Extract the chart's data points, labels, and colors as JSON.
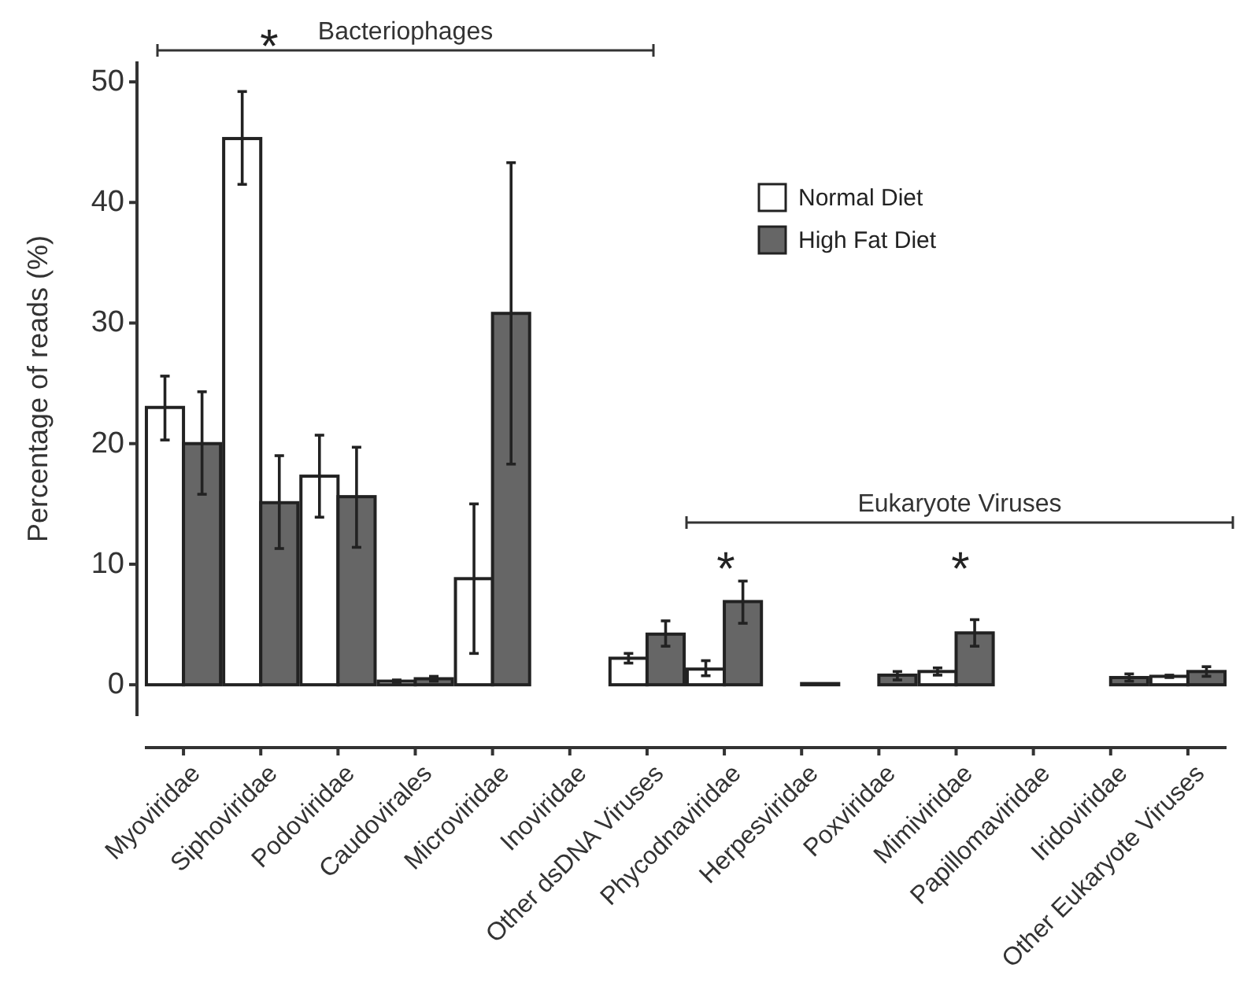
{
  "chart_data": {
    "type": "bar",
    "ylabel": "Percentage of reads (%)",
    "categories": [
      "Myoviridae",
      "Siphoviridae",
      "Podoviridae",
      "Caudovirales",
      "Microviridae",
      "Inoviridae",
      "Other dsDNA Viruses",
      "Phycodnaviridae",
      "Herpesviridae",
      "Poxviridae",
      "Mimiviridae",
      "Papillomaviridae",
      "Iridoviridae",
      "Other Eukaryote Viruses"
    ],
    "series": [
      {
        "name": "Normal Diet",
        "color": "#ffffff",
        "values": [
          23,
          45.3,
          17.3,
          0.3,
          8.8,
          0,
          2.2,
          1.3,
          0,
          0,
          1.1,
          0,
          0,
          0.7
        ],
        "errors": [
          [
            20.3,
            25.6
          ],
          [
            41.5,
            49.2
          ],
          [
            13.9,
            20.7
          ],
          [
            0.2,
            0.4
          ],
          [
            2.6,
            15
          ],
          null,
          [
            1.8,
            2.6
          ],
          [
            0.75,
            2
          ],
          null,
          null,
          [
            0.8,
            1.4
          ],
          null,
          null,
          [
            0.6,
            0.8
          ]
        ]
      },
      {
        "name": "High Fat Diet",
        "color": "#666666",
        "values": [
          20,
          15.1,
          15.6,
          0.5,
          30.8,
          0,
          4.2,
          6.9,
          0.1,
          0.8,
          4.3,
          0,
          0.6,
          1.1
        ],
        "errors": [
          [
            15.8,
            24.3
          ],
          [
            11.3,
            19
          ],
          [
            11.4,
            19.7
          ],
          [
            0.3,
            0.7
          ],
          [
            18.3,
            43.3
          ],
          null,
          [
            3.2,
            5.3
          ],
          [
            5.1,
            8.6
          ],
          null,
          [
            0.4,
            1.1
          ],
          [
            3.2,
            5.4
          ],
          null,
          [
            0.3,
            0.9
          ],
          [
            0.7,
            1.5
          ]
        ]
      }
    ],
    "ylim": [
      -2.6,
      51.7
    ],
    "yticks": [
      0,
      10,
      20,
      30,
      40,
      50
    ],
    "grid": false,
    "legend": "top right",
    "annotations": [
      "Bacteriophages",
      "Eukaryote Viruses",
      "*",
      "*",
      "*"
    ]
  }
}
